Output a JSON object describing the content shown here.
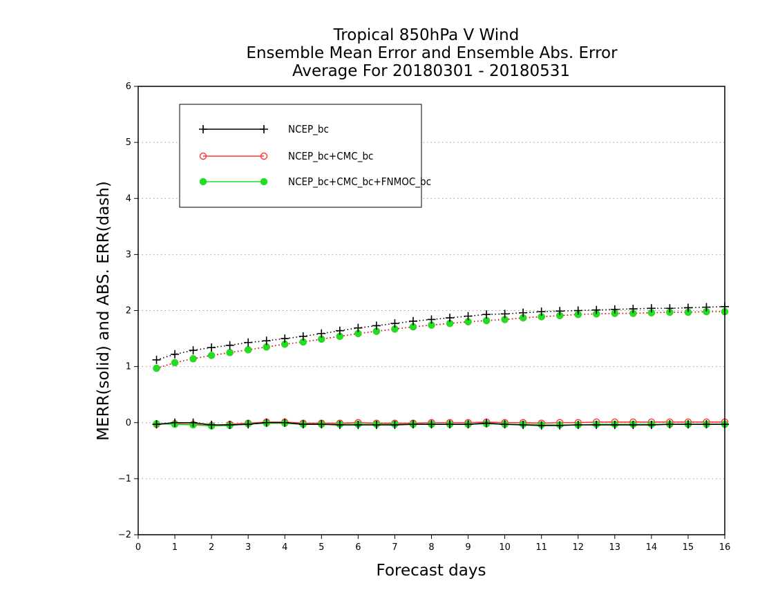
{
  "chart_data": {
    "type": "line",
    "title_lines": [
      "Tropical 850hPa V Wind",
      "Ensemble Mean Error and Ensemble Abs. Error",
      "Average For 20180301 - 20180531"
    ],
    "xlabel": "Forecast days",
    "ylabel": "MERR(solid) and ABS. ERR(dash)",
    "xlim": [
      0,
      16
    ],
    "ylim": [
      -2,
      6
    ],
    "xticks": [
      0,
      1,
      2,
      3,
      4,
      5,
      6,
      7,
      8,
      9,
      10,
      11,
      12,
      13,
      14,
      15,
      16
    ],
    "yticks": [
      -2,
      -1,
      0,
      1,
      2,
      3,
      4,
      5,
      6
    ],
    "grid": "horizontal dotted",
    "legend_position": "top-left",
    "x": [
      0.5,
      1,
      1.5,
      2,
      2.5,
      3,
      3.5,
      4,
      4.5,
      5,
      5.5,
      6,
      6.5,
      7,
      7.5,
      8,
      8.5,
      9,
      9.5,
      10,
      10.5,
      11,
      11.5,
      12,
      12.5,
      13,
      13.5,
      14,
      14.5,
      15,
      15.5,
      16
    ],
    "series": [
      {
        "name": "NCEP_bc",
        "color": "#000000",
        "marker": "plus",
        "merr": [
          -0.03,
          0,
          0,
          -0.04,
          -0.04,
          -0.03,
          0,
          0,
          -0.03,
          -0.03,
          -0.04,
          -0.04,
          -0.04,
          -0.04,
          -0.03,
          -0.03,
          -0.03,
          -0.03,
          -0.01,
          -0.03,
          -0.04,
          -0.05,
          -0.05,
          -0.04,
          -0.04,
          -0.04,
          -0.04,
          -0.04,
          -0.03,
          -0.03,
          -0.03,
          -0.03
        ],
        "abs_err": [
          1.12,
          1.22,
          1.29,
          1.34,
          1.38,
          1.43,
          1.46,
          1.5,
          1.54,
          1.59,
          1.64,
          1.69,
          1.73,
          1.77,
          1.81,
          1.84,
          1.87,
          1.9,
          1.93,
          1.94,
          1.96,
          1.98,
          1.99,
          2.0,
          2.01,
          2.02,
          2.03,
          2.04,
          2.04,
          2.05,
          2.06,
          2.07
        ]
      },
      {
        "name": "NCEP_bc+CMC_bc",
        "color": "#ff3333",
        "marker": "open-circle",
        "merr": [
          -0.03,
          -0.02,
          -0.03,
          -0.05,
          -0.03,
          -0.01,
          0.01,
          0.01,
          -0.01,
          -0.01,
          -0.01,
          0,
          -0.01,
          -0.01,
          -0.01,
          0,
          0,
          0,
          0.01,
          0,
          0,
          -0.01,
          0,
          0,
          0.01,
          0.01,
          0.01,
          0.01,
          0.01,
          0.01,
          0.01,
          0.01
        ],
        "abs_err": [
          0.97,
          1.07,
          1.14,
          1.2,
          1.25,
          1.3,
          1.35,
          1.4,
          1.44,
          1.49,
          1.54,
          1.59,
          1.63,
          1.67,
          1.71,
          1.74,
          1.77,
          1.8,
          1.82,
          1.84,
          1.87,
          1.89,
          1.91,
          1.93,
          1.94,
          1.95,
          1.95,
          1.96,
          1.97,
          1.97,
          1.98,
          1.98
        ]
      },
      {
        "name": "NCEP_bc+CMC_bc+FNMOC_bc",
        "color": "#22dd22",
        "marker": "filled-circle",
        "merr": [
          -0.02,
          -0.03,
          -0.04,
          -0.06,
          -0.05,
          -0.02,
          -0.01,
          -0.01,
          -0.03,
          -0.03,
          -0.03,
          -0.03,
          -0.03,
          -0.03,
          -0.03,
          -0.03,
          -0.03,
          -0.03,
          -0.02,
          -0.03,
          -0.03,
          -0.04,
          -0.04,
          -0.04,
          -0.03,
          -0.03,
          -0.03,
          -0.03,
          -0.03,
          -0.03,
          -0.03,
          -0.03
        ],
        "abs_err": [
          0.97,
          1.07,
          1.14,
          1.2,
          1.25,
          1.3,
          1.35,
          1.4,
          1.44,
          1.49,
          1.54,
          1.59,
          1.63,
          1.67,
          1.71,
          1.74,
          1.77,
          1.8,
          1.82,
          1.84,
          1.87,
          1.89,
          1.91,
          1.93,
          1.94,
          1.95,
          1.95,
          1.96,
          1.97,
          1.97,
          1.98,
          1.98
        ]
      }
    ]
  }
}
